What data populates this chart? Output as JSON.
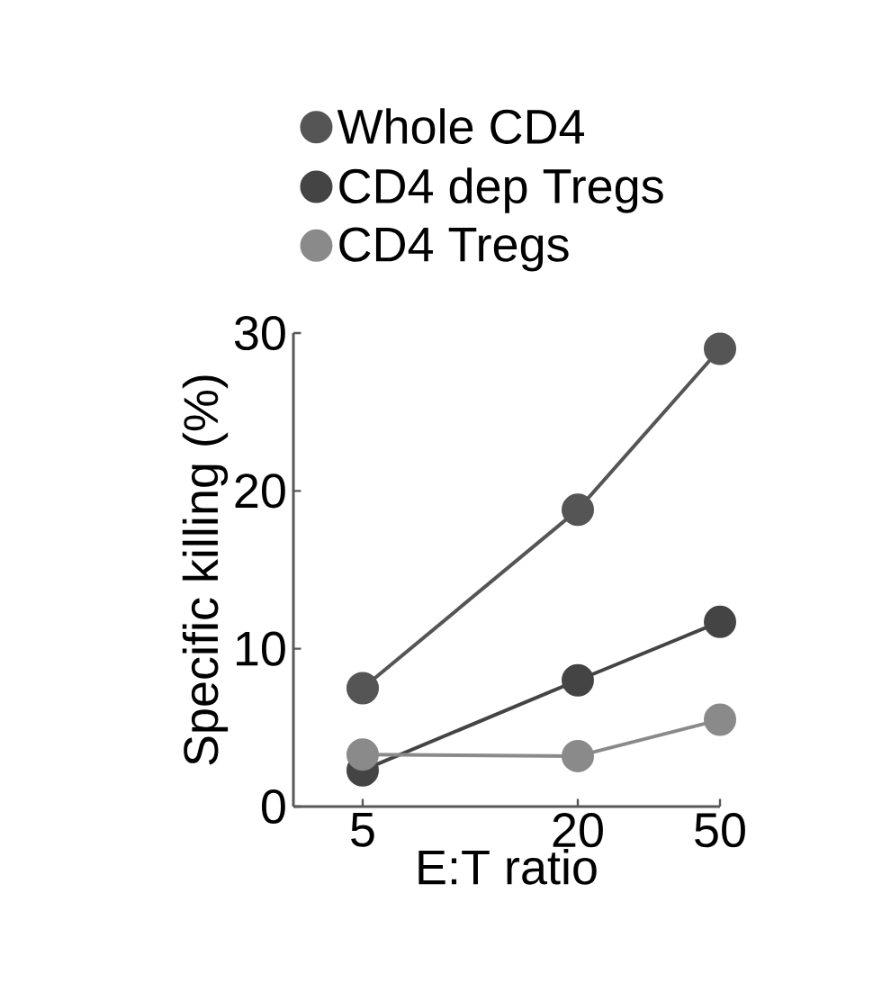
{
  "chart_data": {
    "type": "line",
    "xlabel": "E:T ratio",
    "ylabel": "Specific killing (%)",
    "x": [
      5,
      20,
      50
    ],
    "log": "x",
    "xlim": [
      3.2,
      50
    ],
    "xticks": [
      5,
      20,
      50
    ],
    "ylim": [
      0,
      30
    ],
    "yticks": [
      0,
      10,
      20,
      30
    ],
    "marker": "circle",
    "legend": "top",
    "grid": false,
    "series": [
      {
        "name": "Whole CD4",
        "color": "#555555",
        "values": [
          7.5,
          18.8,
          29
        ]
      },
      {
        "name": "CD4 dep Tregs",
        "color": "#444444",
        "values": [
          2.3,
          8,
          11.7
        ]
      },
      {
        "name": "CD4 Tregs",
        "color": "#8a8a8a",
        "values": [
          3.3,
          3.2,
          5.5
        ]
      }
    ]
  }
}
